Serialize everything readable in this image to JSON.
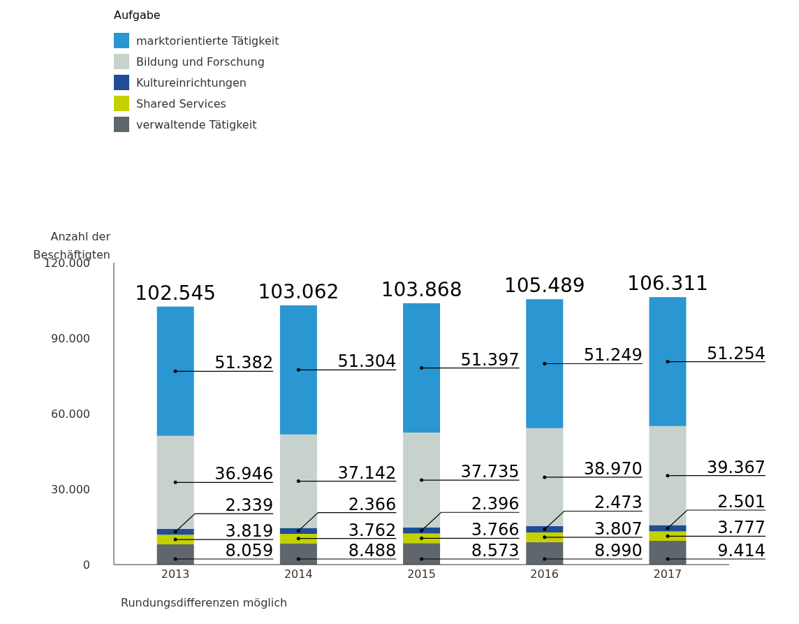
{
  "chart_data": {
    "type": "bar",
    "stacked": true,
    "legend_title": "Aufgabe",
    "ylabel": "Anzahl der Beschäftigten",
    "legend": "top left",
    "categories": [
      "2013",
      "2014",
      "2015",
      "2016",
      "2017"
    ],
    "ylim": [
      0,
      120000
    ],
    "yticks": [
      {
        "value": 0,
        "label": "0"
      },
      {
        "value": 30000,
        "label": "30.000"
      },
      {
        "value": 60000,
        "label": "60.000"
      },
      {
        "value": 90000,
        "label": "90.000"
      },
      {
        "value": 120000,
        "label": "120.000"
      }
    ],
    "series": [
      {
        "name": "verwaltende Tätigkeit",
        "color": "#5f676c",
        "values": [
          8059,
          8488,
          8573,
          8990,
          9414
        ],
        "value_labels": [
          "8.059",
          "8.488",
          "8.573",
          "8.990",
          "9.414"
        ]
      },
      {
        "name": "Shared Services",
        "color": "#c4d100",
        "values": [
          3819,
          3762,
          3766,
          3807,
          3777
        ],
        "value_labels": [
          "3.819",
          "3.762",
          "3.766",
          "3.807",
          "3.777"
        ]
      },
      {
        "name": "Kultureinrichtungen",
        "color": "#1f4e96",
        "values": [
          2339,
          2366,
          2396,
          2473,
          2501
        ],
        "value_labels": [
          "2.339",
          "2.366",
          "2.396",
          "2.473",
          "2.501"
        ]
      },
      {
        "name": "Bildung und Forschung",
        "color": "#c8d2cc",
        "values": [
          36946,
          37142,
          37735,
          38970,
          39367
        ],
        "value_labels": [
          "36.946",
          "37.142",
          "37.735",
          "38.970",
          "39.367"
        ]
      },
      {
        "name": "marktorientierte Tätigkeit",
        "color": "#2a96d2",
        "values": [
          51382,
          51304,
          51397,
          51249,
          51254
        ],
        "value_labels": [
          "51.382",
          "51.304",
          "51.397",
          "51.249",
          "51.254"
        ]
      }
    ],
    "totals": [
      "102.545",
      "103.062",
      "103.868",
      "105.489",
      "106.311"
    ],
    "annotations": [
      "Rundungsdifferenzen möglich"
    ]
  }
}
